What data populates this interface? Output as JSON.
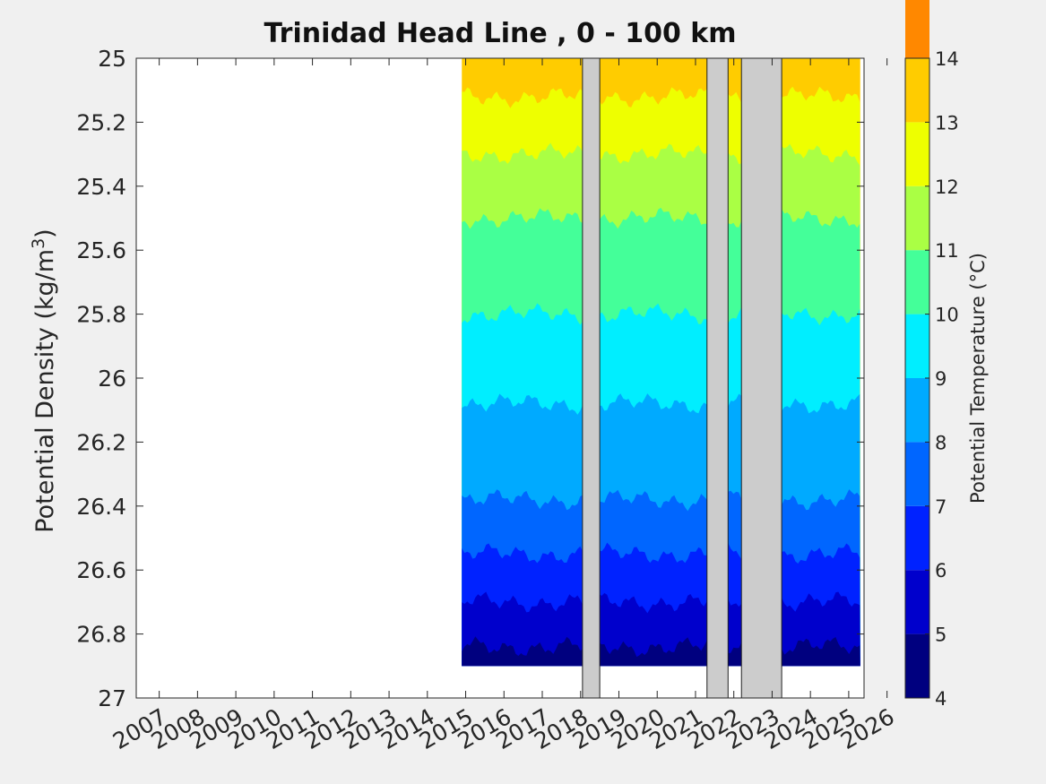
{
  "chart_data": {
    "type": "heatmap",
    "title": "Trinidad Head Line , 0 - 100 km",
    "ylabel": "Potential Density (kg/m",
    "ylabel_sup": "3",
    "ylabel_close": ")",
    "y_reversed": true,
    "ylim": [
      25,
      27
    ],
    "yticks": [
      25,
      25.2,
      25.4,
      25.6,
      25.8,
      26,
      26.2,
      26.4,
      26.6,
      26.8,
      27
    ],
    "ytick_labels": [
      "25",
      "25.2",
      "25.4",
      "25.6",
      "25.8",
      "26",
      "26.2",
      "26.4",
      "26.6",
      "26.8",
      "27"
    ],
    "xlim": [
      2006.4,
      2025.4
    ],
    "xticks": [
      2007,
      2008,
      2009,
      2010,
      2011,
      2012,
      2013,
      2014,
      2015,
      2016,
      2017,
      2018,
      2019,
      2020,
      2021,
      2022,
      2023,
      2024,
      2025,
      2026
    ],
    "xtick_labels": [
      "2007",
      "2008",
      "2009",
      "2010",
      "2011",
      "2012",
      "2013",
      "2014",
      "2015",
      "2016",
      "2017",
      "2018",
      "2019",
      "2020",
      "2021",
      "2022",
      "2023",
      "2024",
      "2025",
      "2026"
    ],
    "data_start_year": 2014.9,
    "data_end_year": 2025.3,
    "data_bottom_density": 26.9,
    "gaps": [
      {
        "from": 2018.05,
        "to": 2018.5
      },
      {
        "from": 2021.3,
        "to": 2021.85
      },
      {
        "from": 2022.2,
        "to": 2023.25
      }
    ],
    "isotherm_density_at_level": [
      {
        "temp": 13,
        "density": 25.12
      },
      {
        "temp": 12,
        "density": 25.3
      },
      {
        "temp": 11,
        "density": 25.5
      },
      {
        "temp": 10,
        "density": 25.8
      },
      {
        "temp": 9,
        "density": 26.08
      },
      {
        "temp": 8,
        "density": 26.38
      },
      {
        "temp": 7,
        "density": 26.55
      },
      {
        "temp": 6,
        "density": 26.7
      },
      {
        "temp": 5,
        "density": 26.84
      },
      {
        "temp": 4,
        "density": 27
      }
    ],
    "colorbar": {
      "label": "Potential Temperature (°C)",
      "clim": [
        4,
        14
      ],
      "ticks": [
        4,
        5,
        6,
        7,
        8,
        9,
        10,
        11,
        12,
        13,
        14
      ],
      "tick_labels": [
        "4",
        "5",
        "6",
        "7",
        "8",
        "9",
        "10",
        "11",
        "12",
        "13",
        "14"
      ],
      "colors": [
        "#00007f",
        "#0000cc",
        "#0022ff",
        "#0066ff",
        "#00aaff",
        "#00eeff",
        "#44ff99",
        "#aaff44",
        "#eeff00",
        "#ffcc00",
        "#ff8800",
        "#ff4400",
        "#ee0000",
        "#aa0000"
      ]
    }
  }
}
